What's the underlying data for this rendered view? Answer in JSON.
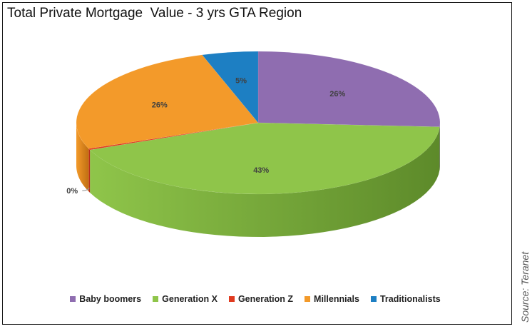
{
  "title": "Total Private Mortgage  Value - 3 yrs GTA Region",
  "source": "Source: Teranet",
  "chart_data": {
    "type": "pie",
    "title": "Total Private Mortgage  Value - 3 yrs GTA Region",
    "three_d": true,
    "start_angle_deg": 0,
    "direction": "clockwise",
    "legend_position": "bottom",
    "slices": [
      {
        "label": "Baby boomers",
        "value": 26,
        "data_label": "26%",
        "color": "#8f6db0",
        "side_color": "#6a4f85"
      },
      {
        "label": "Generation X",
        "value": 43,
        "data_label": "43%",
        "color": "#8fc54a",
        "side_color": "#5d8a2a"
      },
      {
        "label": "Generation Z",
        "value": 0.3,
        "data_label": "0%",
        "color": "#e03a1f",
        "side_color": "#a52a14"
      },
      {
        "label": "Millennials",
        "value": 26,
        "data_label": "26%",
        "color": "#f39a2a",
        "side_color": "#c06f12"
      },
      {
        "label": "Traditionalists",
        "value": 5,
        "data_label": "5%",
        "color": "#1d7fc3",
        "side_color": "#145c8f"
      }
    ]
  }
}
